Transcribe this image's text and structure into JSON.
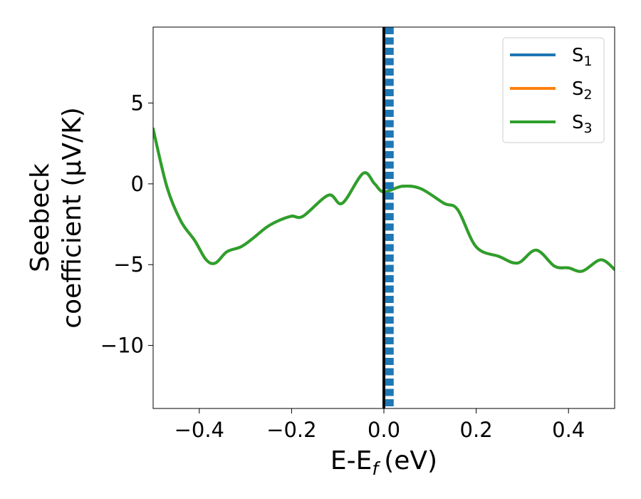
{
  "chart_data": {
    "type": "line",
    "xlabel": "E-E",
    "xlabel_sub": "f",
    "xlabel_unit": "(eV)",
    "ylabel_line1": "Seebeck",
    "ylabel_line2": "coefficient  (μV/K)",
    "xlim": [
      -0.5,
      0.5
    ],
    "ylim": [
      -13.9,
      9.7
    ],
    "x_ticks": [
      -0.4,
      -0.2,
      0.0,
      0.2,
      0.4
    ],
    "x_tick_labels": [
      "−0.4",
      "−0.2",
      "0.0",
      "0.2",
      "0.4"
    ],
    "y_ticks": [
      5,
      0,
      -5,
      -10
    ],
    "y_tick_labels": [
      "5",
      "0",
      "−5",
      "−10"
    ],
    "grid": false,
    "legend_position": "top-right",
    "series": [
      {
        "name": "S",
        "name_sub": "1",
        "color": "#1f77b4",
        "x": [
          -0.5,
          -0.47,
          -0.44,
          -0.41,
          -0.385,
          -0.365,
          -0.34,
          -0.31,
          -0.285,
          -0.255,
          -0.23,
          -0.2,
          -0.175,
          -0.12,
          -0.09,
          -0.045,
          -0.02,
          0.0,
          0.04,
          0.08,
          0.13,
          0.16,
          0.2,
          0.25,
          0.29,
          0.33,
          0.37,
          0.4,
          0.43,
          0.47,
          0.5
        ],
        "y": [
          3.4,
          -0.2,
          -2.3,
          -3.5,
          -4.7,
          -4.9,
          -4.2,
          -3.9,
          -3.4,
          -2.7,
          -2.3,
          -2.0,
          -2.0,
          -0.7,
          -1.2,
          0.65,
          0.0,
          -0.5,
          -0.15,
          -0.3,
          -1.2,
          -1.6,
          -3.9,
          -4.5,
          -4.9,
          -4.1,
          -5.1,
          -5.2,
          -5.4,
          -4.7,
          -5.3
        ]
      },
      {
        "name": "S",
        "name_sub": "2",
        "color": "#ff7f0e",
        "x": [
          -0.5,
          -0.47,
          -0.44,
          -0.41,
          -0.385,
          -0.365,
          -0.34,
          -0.31,
          -0.285,
          -0.255,
          -0.23,
          -0.2,
          -0.175,
          -0.12,
          -0.09,
          -0.045,
          -0.02,
          0.0,
          0.04,
          0.08,
          0.13,
          0.16,
          0.2,
          0.25,
          0.29,
          0.33,
          0.37,
          0.4,
          0.43,
          0.47,
          0.5
        ],
        "y": [
          3.4,
          -0.2,
          -2.3,
          -3.5,
          -4.7,
          -4.9,
          -4.2,
          -3.9,
          -3.4,
          -2.7,
          -2.3,
          -2.0,
          -2.0,
          -0.7,
          -1.2,
          0.65,
          0.0,
          -0.5,
          -0.15,
          -0.3,
          -1.2,
          -1.6,
          -3.9,
          -4.5,
          -4.9,
          -4.1,
          -5.1,
          -5.2,
          -5.4,
          -4.7,
          -5.3
        ]
      },
      {
        "name": "S",
        "name_sub": "3",
        "color": "#2ca02c",
        "x": [
          -0.5,
          -0.47,
          -0.44,
          -0.41,
          -0.385,
          -0.365,
          -0.34,
          -0.31,
          -0.285,
          -0.255,
          -0.23,
          -0.2,
          -0.175,
          -0.12,
          -0.09,
          -0.045,
          -0.02,
          0.0,
          0.04,
          0.08,
          0.13,
          0.16,
          0.2,
          0.25,
          0.29,
          0.33,
          0.37,
          0.4,
          0.43,
          0.47,
          0.5
        ],
        "y": [
          3.4,
          -0.2,
          -2.3,
          -3.5,
          -4.7,
          -4.9,
          -4.2,
          -3.9,
          -3.4,
          -2.7,
          -2.3,
          -2.0,
          -2.0,
          -0.7,
          -1.2,
          0.65,
          0.0,
          -0.5,
          -0.15,
          -0.3,
          -1.2,
          -1.6,
          -3.9,
          -4.5,
          -4.9,
          -4.1,
          -5.1,
          -5.2,
          -5.4,
          -4.7,
          -5.3
        ]
      }
    ],
    "vlines": [
      {
        "x": 0.0,
        "color": "#000000",
        "style": "solid"
      },
      {
        "x": 0.012,
        "color": "#1f77b4",
        "style": "dashed"
      }
    ]
  }
}
